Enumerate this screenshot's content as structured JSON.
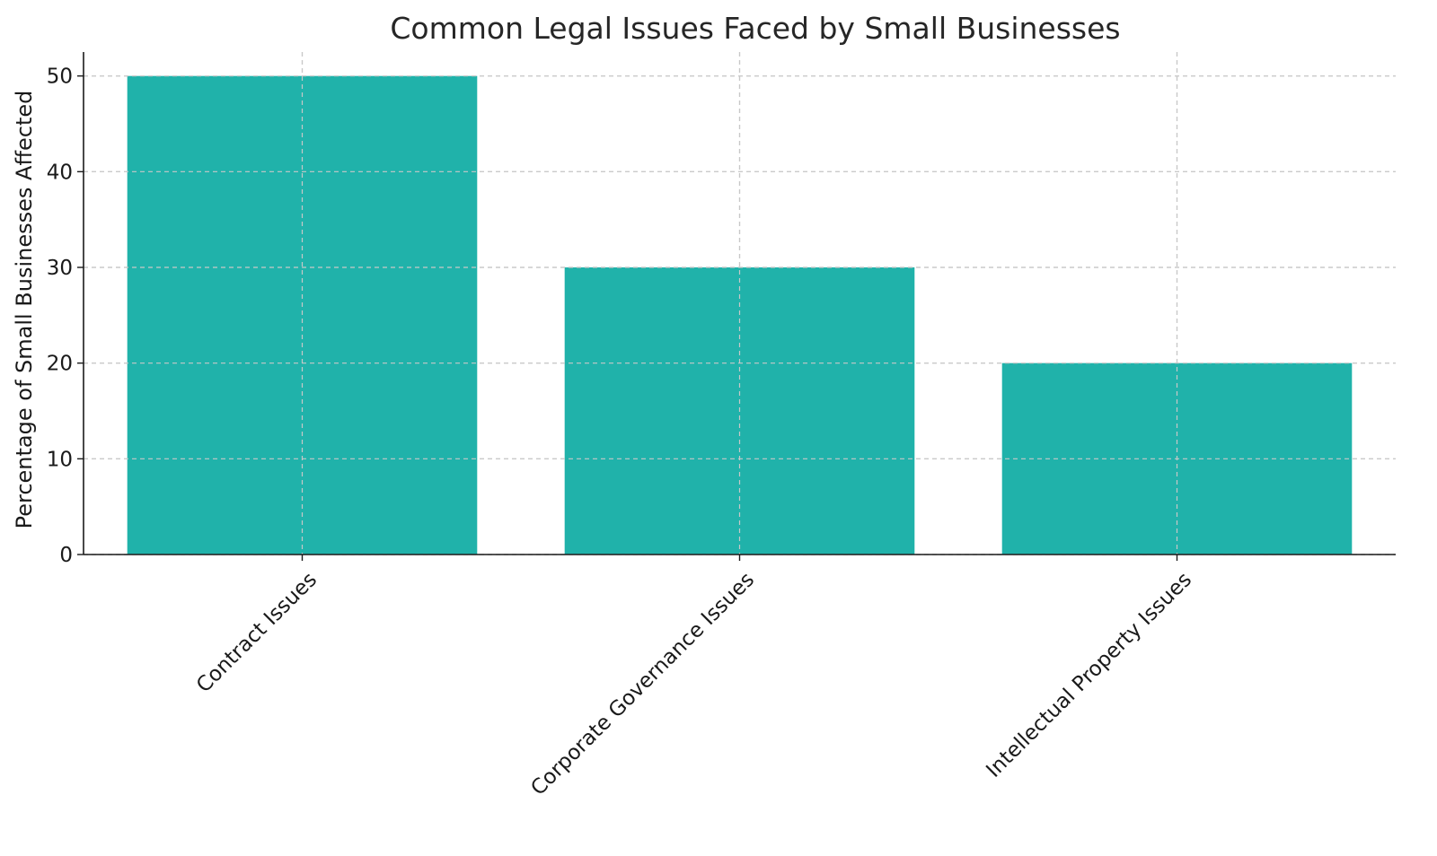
{
  "chart_data": {
    "type": "bar",
    "title": "Common Legal Issues Faced by Small Businesses",
    "xlabel": "",
    "ylabel": "Percentage of Small Businesses Affected",
    "categories": [
      "Contract Issues",
      "Corporate Governance Issues",
      "Intellectual Property Issues"
    ],
    "values": [
      50,
      30,
      20
    ],
    "ylim": [
      0,
      52.5
    ],
    "yticks": [
      0,
      10,
      20,
      30,
      40,
      50
    ],
    "ytick_labels": [
      "0",
      "10",
      "20",
      "30",
      "40",
      "50"
    ],
    "grid": true,
    "bar_color": "#20b2aa"
  }
}
